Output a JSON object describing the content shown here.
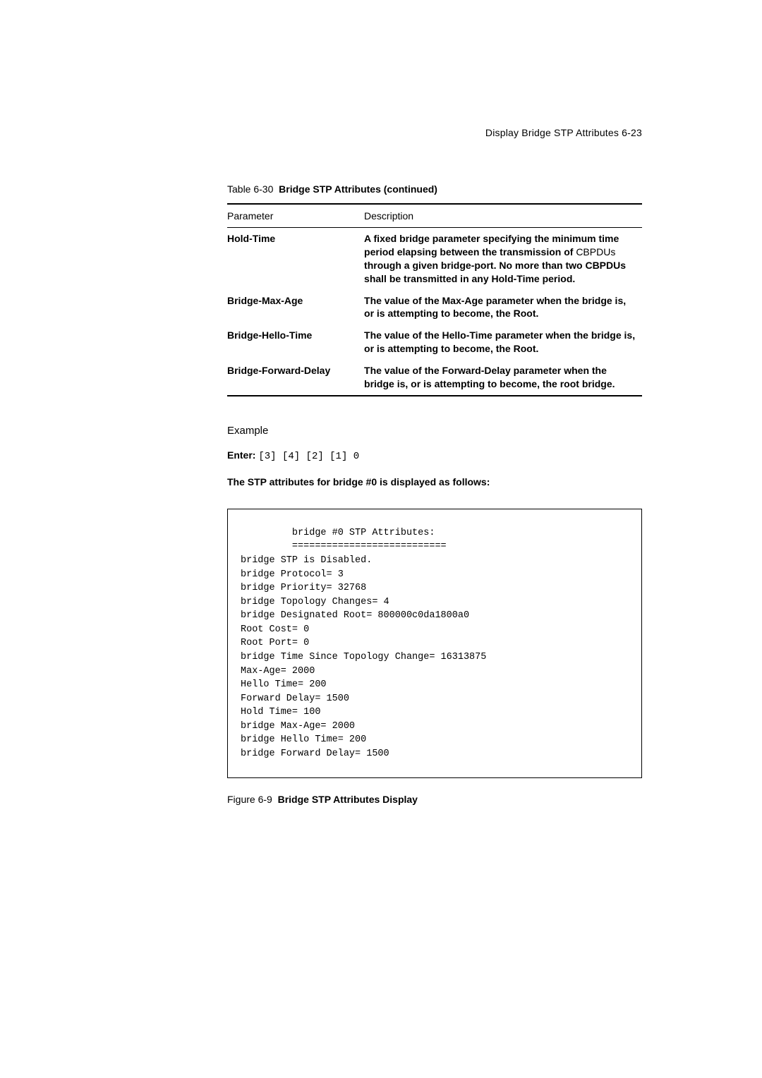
{
  "header": {
    "text": "Display Bridge STP Attributes 6-23"
  },
  "table": {
    "caption_prefix": "Table 6-30",
    "caption_title": "Bridge STP Attributes (continued)",
    "columns": [
      "Parameter",
      "Description"
    ],
    "rows": [
      {
        "param": "Hold-Time",
        "desc_pre": "A fixed bridge parameter specifying the minimum time period elapsing between the transmission of ",
        "desc_nonbold": "CBPDUs",
        "desc_post": " through a given bridge-port. No more than two CBPDUs shall be transmitted in any Hold-Time period."
      },
      {
        "param": "Bridge-Max-Age",
        "desc_pre": "The value of the Max-Age parameter when the bridge is, or is attempting to become, the Root.",
        "desc_nonbold": "",
        "desc_post": ""
      },
      {
        "param": "Bridge-Hello-Time",
        "desc_pre": "The value of the Hello-Time parameter when the bridge is, or is attempting to become, the Root.",
        "desc_nonbold": "",
        "desc_post": ""
      },
      {
        "param": "Bridge-Forward-Delay",
        "desc_pre": "The value of the Forward-Delay parameter when the bridge is, or is attempting to become, the root bridge.",
        "desc_nonbold": "",
        "desc_post": ""
      }
    ]
  },
  "example": {
    "heading": "Example",
    "enter_label": "Enter: ",
    "enter_cmd": "[3] [4] [2] [1] 0",
    "result_text": "The STP attributes for bridge #0 is displayed as follows:"
  },
  "code": {
    "content": "         bridge #0 STP Attributes:\n         ===========================\nbridge STP is Disabled.\nbridge Protocol= 3\nbridge Priority= 32768\nbridge Topology Changes= 4\nbridge Designated Root= 800000c0da1800a0\nRoot Cost= 0\nRoot Port= 0\nbridge Time Since Topology Change= 16313875\nMax-Age= 2000\nHello Time= 200\nForward Delay= 1500\nHold Time= 100\nbridge Max-Age= 2000\nbridge Hello Time= 200\nbridge Forward Delay= 1500"
  },
  "figure": {
    "caption_prefix": "Figure 6-9",
    "caption_title": "Bridge STP Attributes Display"
  }
}
